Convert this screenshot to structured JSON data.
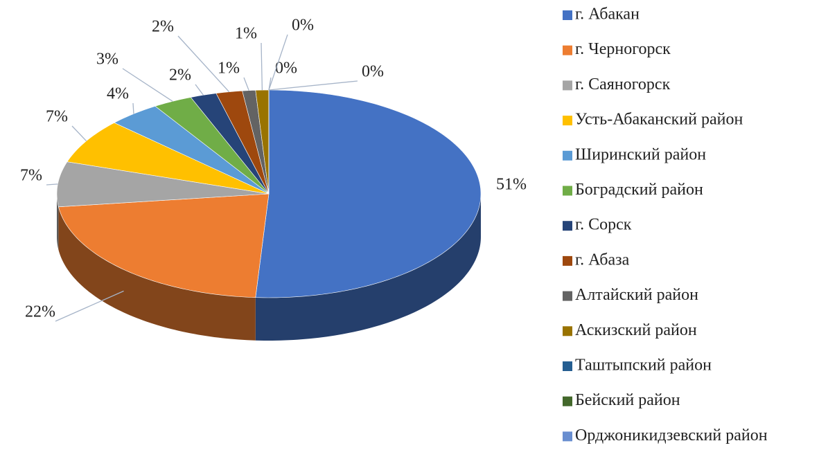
{
  "chart_data": {
    "type": "pie",
    "categories": [
      "г. Абакан",
      "г. Черногорск",
      "г. Саяногорск",
      "Усть-Абаканский район",
      "Ширинский район",
      "Боградский район",
      "г. Сорск",
      "г. Абаза",
      "Алтайский район",
      "Аскизский район",
      "Таштыпский район",
      "Бейский район",
      "Орджоникидзевский район"
    ],
    "values": [
      51,
      22,
      7,
      7,
      4,
      3,
      2,
      2,
      1,
      1,
      0,
      0,
      0
    ],
    "value_labels": [
      "51%",
      "22%",
      "7%",
      "7%",
      "4%",
      "3%",
      "2%",
      "2%",
      "1%",
      "1%",
      "0%",
      "0%",
      "0%"
    ],
    "colors": [
      "#4472c4",
      "#ed7d31",
      "#a5a5a5",
      "#ffc000",
      "#5b9bd5",
      "#70ad47",
      "#264478",
      "#9e480e",
      "#636363",
      "#997300",
      "#255e91",
      "#43682b",
      "#698ed0"
    ],
    "legend": "right"
  }
}
